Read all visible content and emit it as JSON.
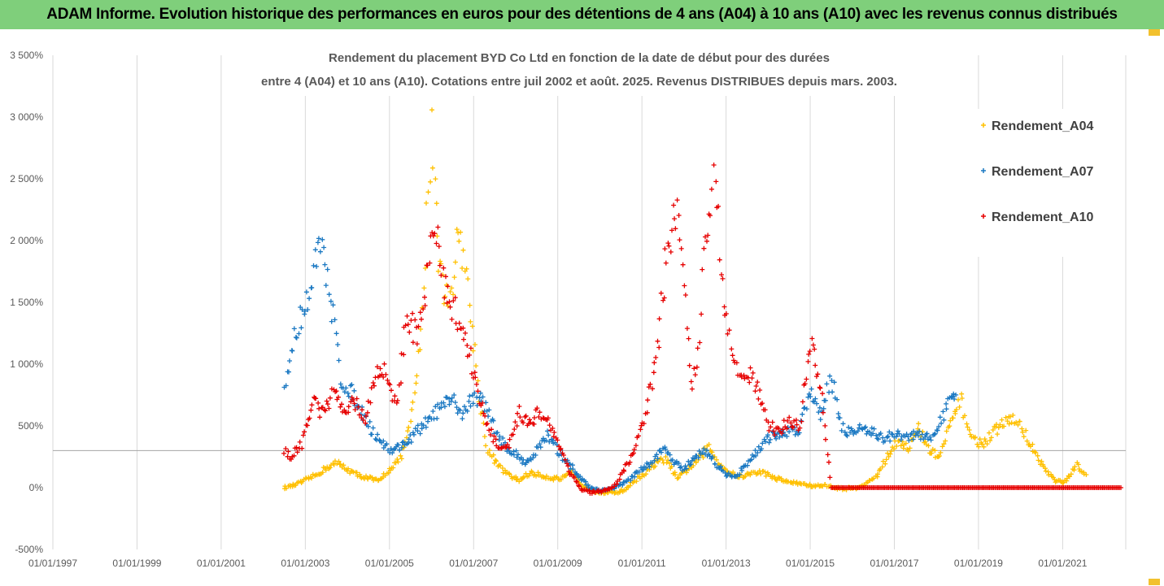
{
  "banner": {
    "text": "ADAM Informe. Evolution historique des performances en euros pour des détentions de 4 ans (A04) à 10 ans (A10) avec les revenus connus distribués"
  },
  "colors": {
    "banner_bg": "#7fcf7b",
    "A04": "#ffc000",
    "A07": "#1a78c2",
    "A10": "#e60000",
    "gridline": "#d9d9d9",
    "reference_line": "#a6a6a6"
  },
  "chart_data": {
    "type": "scatter",
    "marker": "+",
    "title_lines": [
      "Rendement du placement BYD Co Ltd en fonction de la date de début pour des durées",
      "entre 4 (A04) et 10 ans (A10). Cotations entre juil 2002 et août. 2025. Revenus DISTRIBUES depuis mars. 2003."
    ],
    "x_axis": {
      "type": "date",
      "range": [
        "1997-01-01",
        "2022-07-01"
      ],
      "tick_labels": [
        "01/01/1997",
        "01/01/1999",
        "01/01/2001",
        "01/01/2003",
        "01/01/2005",
        "01/01/2007",
        "01/01/2009",
        "01/01/2011",
        "01/01/2013",
        "01/01/2015",
        "01/01/2017",
        "01/01/2019",
        "01/01/2021"
      ]
    },
    "y_axis": {
      "range": [
        -500,
        3500
      ],
      "tick_values": [
        -500,
        0,
        500,
        1000,
        1500,
        2000,
        2500,
        3000,
        3500
      ],
      "tick_labels": [
        "-500%",
        "0%",
        "500%",
        "1 000%",
        "1 500%",
        "2 000%",
        "2 500%",
        "3 000%",
        "3 500%"
      ]
    },
    "reference_line": {
      "y": 300
    },
    "grid": {
      "vertical": true,
      "horizontal": false
    },
    "legend": {
      "position": "top-right"
    },
    "series": [
      {
        "name": "Rendement_A04",
        "points": [
          [
            "2002-07",
            0
          ],
          [
            "2002-10",
            20
          ],
          [
            "2003-01",
            60
          ],
          [
            "2003-04",
            100
          ],
          [
            "2003-07",
            160
          ],
          [
            "2003-10",
            200
          ],
          [
            "2004-01",
            150
          ],
          [
            "2004-04",
            100
          ],
          [
            "2004-07",
            80
          ],
          [
            "2004-10",
            50
          ],
          [
            "2005-01",
            150
          ],
          [
            "2005-04",
            230
          ],
          [
            "2005-07",
            500
          ],
          [
            "2005-10",
            1200
          ],
          [
            "2005-12",
            2400
          ],
          [
            "2006-01",
            2950
          ],
          [
            "2006-02",
            2500
          ],
          [
            "2006-03",
            1900
          ],
          [
            "2006-05",
            1500
          ],
          [
            "2006-07",
            1700
          ],
          [
            "2006-09",
            2100
          ],
          [
            "2006-11",
            1700
          ],
          [
            "2007-01",
            1200
          ],
          [
            "2007-03",
            650
          ],
          [
            "2007-05",
            300
          ],
          [
            "2007-08",
            180
          ],
          [
            "2007-11",
            100
          ],
          [
            "2008-02",
            60
          ],
          [
            "2008-05",
            120
          ],
          [
            "2008-08",
            100
          ],
          [
            "2008-11",
            80
          ],
          [
            "2009-02",
            70
          ],
          [
            "2009-05",
            120
          ],
          [
            "2009-08",
            20
          ],
          [
            "2009-11",
            -20
          ],
          [
            "2010-02",
            -40
          ],
          [
            "2010-05",
            -40
          ],
          [
            "2010-08",
            -20
          ],
          [
            "2010-11",
            60
          ],
          [
            "2011-02",
            120
          ],
          [
            "2011-05",
            200
          ],
          [
            "2011-08",
            230
          ],
          [
            "2011-11",
            70
          ],
          [
            "2012-02",
            150
          ],
          [
            "2012-05",
            220
          ],
          [
            "2012-08",
            330
          ],
          [
            "2012-11",
            200
          ],
          [
            "2013-02",
            120
          ],
          [
            "2013-05",
            90
          ],
          [
            "2013-08",
            110
          ],
          [
            "2013-11",
            130
          ],
          [
            "2014-02",
            90
          ],
          [
            "2014-05",
            60
          ],
          [
            "2014-08",
            40
          ],
          [
            "2014-11",
            30
          ],
          [
            "2015-02",
            10
          ],
          [
            "2015-05",
            20
          ],
          [
            "2015-08",
            0
          ],
          [
            "2015-11",
            -10
          ],
          [
            "2016-02",
            0
          ],
          [
            "2016-05",
            30
          ],
          [
            "2016-08",
            100
          ],
          [
            "2016-11",
            250
          ],
          [
            "2017-02",
            390
          ],
          [
            "2017-05",
            320
          ],
          [
            "2017-08",
            480
          ],
          [
            "2017-11",
            300
          ],
          [
            "2018-02",
            250
          ],
          [
            "2018-05",
            520
          ],
          [
            "2018-08",
            700
          ],
          [
            "2018-11",
            400
          ],
          [
            "2019-02",
            350
          ],
          [
            "2019-05",
            440
          ],
          [
            "2019-08",
            520
          ],
          [
            "2019-11",
            560
          ],
          [
            "2020-02",
            450
          ],
          [
            "2020-05",
            280
          ],
          [
            "2020-08",
            150
          ],
          [
            "2020-11",
            50
          ],
          [
            "2021-02",
            50
          ],
          [
            "2021-05",
            180
          ],
          [
            "2021-08",
            80
          ]
        ]
      },
      {
        "name": "Rendement_A07",
        "points": [
          [
            "2002-07",
            800
          ],
          [
            "2002-09",
            1100
          ],
          [
            "2002-11",
            1350
          ],
          [
            "2003-01",
            1500
          ],
          [
            "2003-03",
            1650
          ],
          [
            "2003-05",
            2000
          ],
          [
            "2003-07",
            1700
          ],
          [
            "2003-09",
            1400
          ],
          [
            "2003-11",
            900
          ],
          [
            "2004-01",
            800
          ],
          [
            "2004-04",
            700
          ],
          [
            "2004-07",
            500
          ],
          [
            "2004-10",
            400
          ],
          [
            "2005-01",
            300
          ],
          [
            "2005-04",
            330
          ],
          [
            "2005-07",
            400
          ],
          [
            "2005-10",
            480
          ],
          [
            "2006-01",
            580
          ],
          [
            "2006-04",
            650
          ],
          [
            "2006-07",
            700
          ],
          [
            "2006-10",
            600
          ],
          [
            "2007-01",
            750
          ],
          [
            "2007-04",
            680
          ],
          [
            "2007-07",
            480
          ],
          [
            "2007-10",
            330
          ],
          [
            "2008-01",
            270
          ],
          [
            "2008-04",
            200
          ],
          [
            "2008-07",
            300
          ],
          [
            "2008-10",
            420
          ],
          [
            "2009-01",
            300
          ],
          [
            "2009-04",
            200
          ],
          [
            "2009-07",
            100
          ],
          [
            "2009-10",
            0
          ],
          [
            "2010-01",
            -20
          ],
          [
            "2010-04",
            -10
          ],
          [
            "2010-07",
            20
          ],
          [
            "2010-10",
            80
          ],
          [
            "2011-01",
            150
          ],
          [
            "2011-04",
            200
          ],
          [
            "2011-07",
            330
          ],
          [
            "2011-10",
            200
          ],
          [
            "2012-01",
            150
          ],
          [
            "2012-04",
            250
          ],
          [
            "2012-07",
            300
          ],
          [
            "2012-10",
            200
          ],
          [
            "2013-01",
            100
          ],
          [
            "2013-04",
            100
          ],
          [
            "2013-07",
            200
          ],
          [
            "2013-10",
            300
          ],
          [
            "2014-01",
            400
          ],
          [
            "2014-04",
            430
          ],
          [
            "2014-07",
            460
          ],
          [
            "2014-10",
            480
          ],
          [
            "2015-01",
            800
          ],
          [
            "2015-04",
            600
          ],
          [
            "2015-07",
            900
          ],
          [
            "2015-10",
            500
          ],
          [
            "2016-01",
            430
          ],
          [
            "2016-04",
            500
          ],
          [
            "2016-07",
            450
          ],
          [
            "2016-10",
            390
          ],
          [
            "2017-01",
            430
          ],
          [
            "2017-04",
            400
          ],
          [
            "2017-07",
            430
          ],
          [
            "2017-10",
            400
          ],
          [
            "2018-01",
            450
          ],
          [
            "2018-04",
            650
          ],
          [
            "2018-07",
            800
          ]
        ]
      },
      {
        "name": "Rendement_A10",
        "points": [
          [
            "2002-07",
            300
          ],
          [
            "2002-09",
            250
          ],
          [
            "2002-12",
            350
          ],
          [
            "2003-03",
            700
          ],
          [
            "2003-06",
            600
          ],
          [
            "2003-09",
            750
          ],
          [
            "2003-12",
            650
          ],
          [
            "2004-03",
            700
          ],
          [
            "2004-06",
            550
          ],
          [
            "2004-09",
            900
          ],
          [
            "2004-12",
            950
          ],
          [
            "2005-03",
            650
          ],
          [
            "2005-06",
            1400
          ],
          [
            "2005-09",
            1200
          ],
          [
            "2005-12",
            1750
          ],
          [
            "2006-02",
            2100
          ],
          [
            "2006-05",
            1600
          ],
          [
            "2006-08",
            1400
          ],
          [
            "2006-11",
            1200
          ],
          [
            "2007-02",
            800
          ],
          [
            "2007-05",
            500
          ],
          [
            "2007-08",
            320
          ],
          [
            "2007-11",
            320
          ],
          [
            "2008-02",
            600
          ],
          [
            "2008-05",
            530
          ],
          [
            "2008-08",
            620
          ],
          [
            "2008-11",
            500
          ],
          [
            "2009-02",
            300
          ],
          [
            "2009-05",
            100
          ],
          [
            "2009-08",
            -20
          ],
          [
            "2009-11",
            -40
          ],
          [
            "2010-02",
            -30
          ],
          [
            "2010-05",
            0
          ],
          [
            "2010-08",
            150
          ],
          [
            "2010-11",
            300
          ],
          [
            "2011-02",
            600
          ],
          [
            "2011-05",
            1000
          ],
          [
            "2011-08",
            1900
          ],
          [
            "2011-11",
            2300
          ],
          [
            "2012-01",
            1600
          ],
          [
            "2012-03",
            800
          ],
          [
            "2012-05",
            1100
          ],
          [
            "2012-07",
            2000
          ],
          [
            "2012-09",
            2500
          ],
          [
            "2012-10",
            2600
          ],
          [
            "2012-12",
            1600
          ],
          [
            "2013-02",
            1200
          ],
          [
            "2013-04",
            1000
          ],
          [
            "2013-06",
            950
          ],
          [
            "2013-08",
            900
          ],
          [
            "2013-10",
            800
          ],
          [
            "2014-01",
            500
          ],
          [
            "2014-04",
            450
          ],
          [
            "2014-07",
            550
          ],
          [
            "2014-10",
            500
          ],
          [
            "2015-01",
            1200
          ],
          [
            "2015-04",
            800
          ],
          [
            "2015-07",
            0
          ],
          [
            "2022-06",
            0
          ]
        ]
      }
    ]
  }
}
